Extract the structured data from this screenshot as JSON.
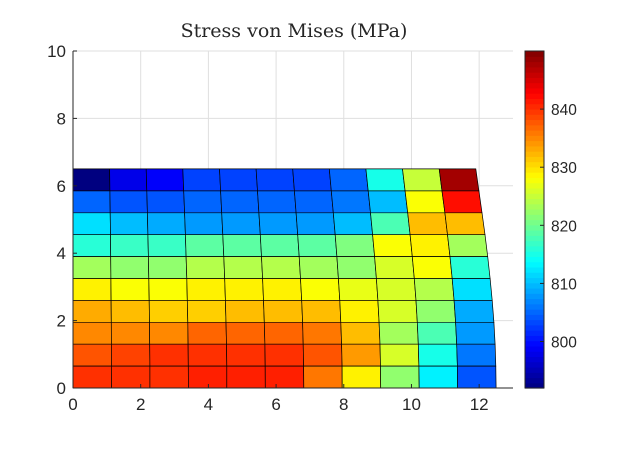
{
  "chart_data": {
    "type": "heatmap",
    "title": "Stress von Mises (MPa)",
    "xlabel": "",
    "ylabel": "",
    "xlim": [
      0,
      13
    ],
    "ylim": [
      0,
      10
    ],
    "xticks": [
      "0",
      "2",
      "4",
      "6",
      "8",
      "10",
      "12"
    ],
    "yticks": [
      "0",
      "2",
      "4",
      "6",
      "8",
      "10"
    ],
    "grid": true,
    "colormap": "jet",
    "clim": [
      792,
      850
    ],
    "colorbar_ticks": [
      "800",
      "810",
      "820",
      "830",
      "840"
    ],
    "mesh": {
      "columns": 11,
      "rows": 10,
      "x_left": 0,
      "x_right_bottom": 12.5,
      "x_right_top": 11.9,
      "y_top": 6.5,
      "y_bottom": 0,
      "stress_rows_top_to_bottom": [
        [
          792,
          798,
          799,
          803,
          803,
          803,
          803,
          805,
          815,
          825,
          848
        ],
        [
          805,
          804,
          804,
          805,
          805,
          805,
          805,
          806,
          810,
          828,
          842
        ],
        [
          812,
          810,
          809,
          808,
          808,
          808,
          808,
          810,
          818,
          832,
          832
        ],
        [
          816,
          817,
          817,
          819,
          819,
          819,
          819,
          821,
          828,
          829,
          823
        ],
        [
          823,
          822,
          822,
          824,
          824,
          824,
          823,
          822,
          826,
          828,
          816
        ],
        [
          829,
          828,
          828,
          829,
          829,
          829,
          828,
          827,
          826,
          824,
          812
        ],
        [
          833,
          832,
          831,
          831,
          832,
          832,
          832,
          829,
          826,
          822,
          809
        ],
        [
          835,
          835,
          835,
          837,
          837,
          837,
          836,
          832,
          823,
          818,
          808
        ],
        [
          838,
          839,
          840,
          840,
          840,
          840,
          838,
          834,
          826,
          815,
          806
        ],
        [
          840,
          840,
          840,
          841,
          841,
          841,
          836,
          829,
          822,
          813,
          804
        ]
      ]
    }
  }
}
